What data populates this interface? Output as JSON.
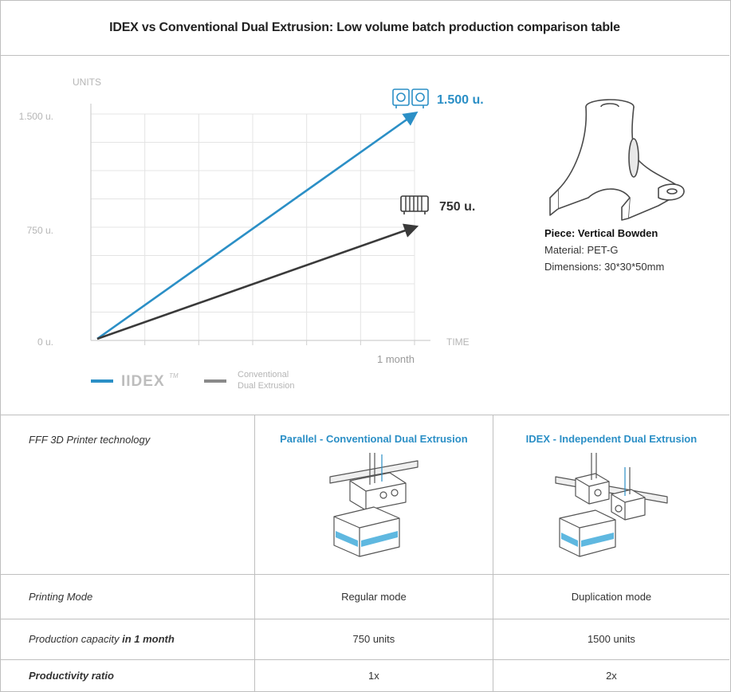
{
  "title": "IDEX vs Conventional Dual Extrusion: Low volume batch production comparison table",
  "chart_data": {
    "type": "line",
    "ylabel": "UNITS",
    "xlabel": "TIME",
    "y_ticks": [
      "0 u.",
      "750 u.",
      "1.500 u."
    ],
    "x_tick_label": "1 month",
    "ylim": [
      0,
      1500
    ],
    "grid": true,
    "legend_position": "bottom-left",
    "series": [
      {
        "name": "IDEX™",
        "x": [
          0,
          1
        ],
        "values": [
          0,
          1500
        ],
        "end_label": "1.500 u.",
        "color": "#2b8fc6"
      },
      {
        "name": "Conventional Dual Extrusion",
        "x": [
          0,
          1
        ],
        "values": [
          0,
          750
        ],
        "end_label": "750 u.",
        "color": "#3a3a3a"
      }
    ],
    "legend": {
      "idex_text": "IIDEX",
      "idex_tm": "TM",
      "conv_line1": "Conventional",
      "conv_line2": "Dual Extrusion"
    }
  },
  "piece": {
    "title": "Piece: Vertical Bowden",
    "material": "Material: PET-G",
    "dimensions": "Dimensions: 30*30*50mm"
  },
  "table": {
    "tech_label": "FFF 3D Printer technology",
    "col2_head": "Parallel - Conventional Dual Extrusion",
    "col3_head": "IDEX - Independent Dual Extrusion",
    "rows": [
      {
        "label_prefix": "Printing Mode",
        "label_bold": "",
        "v1": "Regular mode",
        "v2": "Duplication mode"
      },
      {
        "label_prefix": "Production capacity ",
        "label_bold": "in 1 month",
        "v1": "750 units",
        "v2": "1500 units"
      },
      {
        "label_prefix": "",
        "label_bold": "Productivity ratio",
        "v1": "1x",
        "v2": "2x"
      }
    ]
  },
  "colors": {
    "accent": "#2b8fc6",
    "dark": "#3a3a3a",
    "grid": "#e4e4e4",
    "border": "#bfbfbf"
  }
}
